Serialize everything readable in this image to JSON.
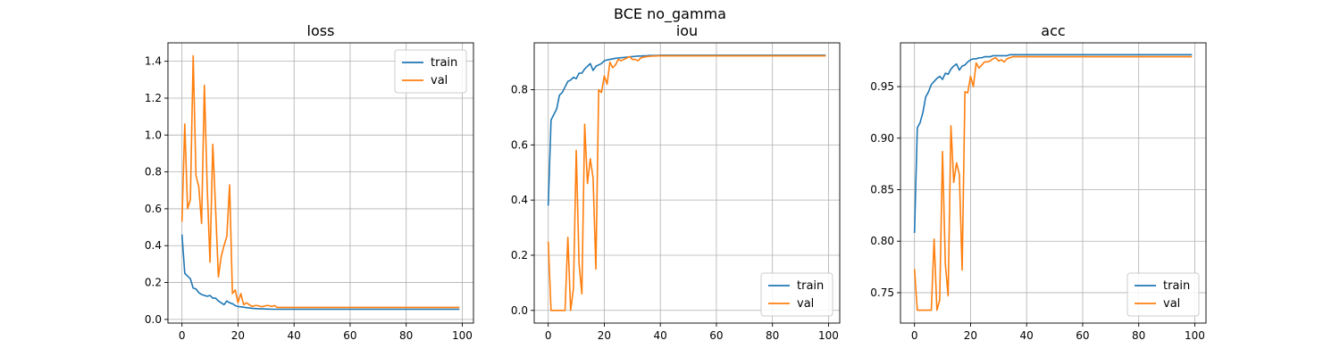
{
  "figure": {
    "suptitle": "BCE no_gamma"
  },
  "chart_data": [
    {
      "type": "line",
      "title": "loss",
      "xlabel": "",
      "ylabel": "",
      "xlim": [
        -5,
        104
      ],
      "ylim": [
        -0.02,
        1.5
      ],
      "xticks": [
        0,
        20,
        40,
        60,
        80,
        100
      ],
      "yticks": [
        0.0,
        0.2,
        0.4,
        0.6,
        0.8,
        1.0,
        1.2,
        1.4
      ],
      "ytick_labels": [
        "0.0",
        "0.2",
        "0.4",
        "0.6",
        "0.8",
        "1.0",
        "1.2",
        "1.4"
      ],
      "grid": true,
      "legend": "upper right",
      "series": [
        {
          "name": "train",
          "color": "#1f77b4",
          "values": [
            0.46,
            0.25,
            0.235,
            0.22,
            0.17,
            0.165,
            0.145,
            0.135,
            0.13,
            0.125,
            0.13,
            0.115,
            0.115,
            0.1,
            0.09,
            0.08,
            0.1,
            0.09,
            0.085,
            0.075,
            0.07,
            0.068,
            0.066,
            0.064,
            0.062,
            0.06,
            0.059,
            0.058,
            0.057,
            0.057,
            0.056,
            0.056,
            0.055,
            0.055,
            0.055,
            0.055,
            0.055,
            0.055,
            0.055,
            0.055,
            0.055,
            0.055,
            0.055,
            0.055,
            0.055,
            0.055,
            0.055,
            0.055,
            0.055,
            0.055,
            0.055,
            0.055,
            0.055,
            0.055,
            0.055,
            0.055,
            0.055,
            0.055,
            0.055,
            0.055,
            0.055,
            0.055,
            0.055,
            0.055,
            0.055,
            0.055,
            0.055,
            0.055,
            0.055,
            0.055,
            0.055,
            0.055,
            0.055,
            0.055,
            0.055,
            0.055,
            0.055,
            0.055,
            0.055,
            0.055,
            0.055,
            0.055,
            0.055,
            0.055,
            0.055,
            0.055,
            0.055,
            0.055,
            0.055,
            0.055,
            0.055,
            0.055,
            0.055,
            0.055,
            0.055,
            0.055,
            0.055,
            0.055,
            0.055,
            0.055
          ]
        },
        {
          "name": "val",
          "color": "#ff7f0e",
          "values": [
            0.53,
            1.06,
            0.6,
            0.65,
            1.43,
            0.78,
            0.72,
            0.52,
            1.27,
            0.72,
            0.31,
            0.95,
            0.6,
            0.23,
            0.34,
            0.4,
            0.45,
            0.73,
            0.14,
            0.16,
            0.09,
            0.14,
            0.08,
            0.09,
            0.08,
            0.07,
            0.075,
            0.075,
            0.07,
            0.07,
            0.075,
            0.075,
            0.07,
            0.075,
            0.065,
            0.065,
            0.065,
            0.065,
            0.065,
            0.065,
            0.065,
            0.065,
            0.065,
            0.065,
            0.065,
            0.065,
            0.065,
            0.065,
            0.065,
            0.065,
            0.065,
            0.065,
            0.065,
            0.065,
            0.065,
            0.065,
            0.065,
            0.065,
            0.065,
            0.065,
            0.065,
            0.065,
            0.065,
            0.065,
            0.065,
            0.065,
            0.065,
            0.065,
            0.065,
            0.065,
            0.065,
            0.065,
            0.065,
            0.065,
            0.065,
            0.065,
            0.065,
            0.065,
            0.065,
            0.065,
            0.065,
            0.065,
            0.065,
            0.065,
            0.065,
            0.065,
            0.065,
            0.065,
            0.065,
            0.065,
            0.065,
            0.065,
            0.065,
            0.065,
            0.065,
            0.065,
            0.065,
            0.065,
            0.065,
            0.065
          ]
        }
      ]
    },
    {
      "type": "line",
      "title": "iou",
      "xlabel": "",
      "ylabel": "",
      "xlim": [
        -5,
        104
      ],
      "ylim": [
        -0.046,
        0.97
      ],
      "xticks": [
        0,
        20,
        40,
        60,
        80,
        100
      ],
      "yticks": [
        0.0,
        0.2,
        0.4,
        0.6,
        0.8
      ],
      "ytick_labels": [
        "0.0",
        "0.2",
        "0.4",
        "0.6",
        "0.8"
      ],
      "grid": true,
      "legend": "lower right",
      "series": [
        {
          "name": "train",
          "color": "#1f77b4",
          "values": [
            0.38,
            0.69,
            0.71,
            0.73,
            0.78,
            0.79,
            0.81,
            0.83,
            0.835,
            0.845,
            0.84,
            0.86,
            0.86,
            0.875,
            0.885,
            0.895,
            0.87,
            0.885,
            0.89,
            0.895,
            0.905,
            0.908,
            0.91,
            0.912,
            0.914,
            0.915,
            0.916,
            0.917,
            0.918,
            0.919,
            0.92,
            0.921,
            0.922,
            0.922,
            0.923,
            0.923,
            0.924,
            0.924,
            0.924,
            0.924,
            0.925,
            0.925,
            0.925,
            0.925,
            0.925,
            0.925,
            0.925,
            0.925,
            0.925,
            0.925,
            0.925,
            0.925,
            0.925,
            0.925,
            0.925,
            0.925,
            0.925,
            0.925,
            0.925,
            0.925,
            0.925,
            0.925,
            0.925,
            0.925,
            0.925,
            0.925,
            0.925,
            0.925,
            0.925,
            0.925,
            0.925,
            0.925,
            0.925,
            0.925,
            0.925,
            0.925,
            0.925,
            0.925,
            0.925,
            0.925,
            0.925,
            0.925,
            0.925,
            0.925,
            0.925,
            0.925,
            0.925,
            0.925,
            0.925,
            0.925,
            0.925,
            0.925,
            0.925,
            0.925,
            0.925,
            0.925,
            0.925,
            0.925,
            0.925,
            0.925
          ]
        },
        {
          "name": "val",
          "color": "#ff7f0e",
          "values": [
            0.25,
            0.0,
            0.0,
            0.0,
            0.0,
            0.0,
            0.0,
            0.265,
            0.0,
            0.08,
            0.58,
            0.17,
            0.06,
            0.675,
            0.46,
            0.55,
            0.48,
            0.15,
            0.8,
            0.79,
            0.85,
            0.82,
            0.9,
            0.88,
            0.89,
            0.91,
            0.905,
            0.91,
            0.915,
            0.92,
            0.91,
            0.91,
            0.905,
            0.915,
            0.918,
            0.92,
            0.921,
            0.922,
            0.922,
            0.923,
            0.923,
            0.923,
            0.923,
            0.923,
            0.923,
            0.923,
            0.923,
            0.923,
            0.923,
            0.923,
            0.923,
            0.923,
            0.923,
            0.923,
            0.923,
            0.923,
            0.923,
            0.923,
            0.923,
            0.923,
            0.923,
            0.923,
            0.923,
            0.923,
            0.923,
            0.923,
            0.923,
            0.923,
            0.923,
            0.923,
            0.923,
            0.923,
            0.923,
            0.923,
            0.923,
            0.923,
            0.923,
            0.923,
            0.923,
            0.923,
            0.923,
            0.923,
            0.923,
            0.923,
            0.923,
            0.923,
            0.923,
            0.923,
            0.923,
            0.923,
            0.923,
            0.923,
            0.923,
            0.923,
            0.923,
            0.923,
            0.923,
            0.923,
            0.923,
            0.923
          ]
        }
      ]
    },
    {
      "type": "line",
      "title": "acc",
      "xlabel": "",
      "ylabel": "",
      "xlim": [
        -5,
        104
      ],
      "ylim": [
        0.7205,
        0.9925
      ],
      "xticks": [
        0,
        20,
        40,
        60,
        80,
        100
      ],
      "yticks": [
        0.75,
        0.8,
        0.85,
        0.9,
        0.95
      ],
      "ytick_labels": [
        "0.75",
        "0.80",
        "0.85",
        "0.90",
        "0.95"
      ],
      "grid": true,
      "legend": "lower right",
      "series": [
        {
          "name": "train",
          "color": "#1f77b4",
          "values": [
            0.808,
            0.91,
            0.915,
            0.925,
            0.94,
            0.945,
            0.952,
            0.955,
            0.958,
            0.96,
            0.957,
            0.963,
            0.962,
            0.967,
            0.97,
            0.972,
            0.966,
            0.97,
            0.971,
            0.974,
            0.976,
            0.977,
            0.977,
            0.978,
            0.978,
            0.979,
            0.979,
            0.979,
            0.98,
            0.98,
            0.98,
            0.98,
            0.98,
            0.98,
            0.981,
            0.981,
            0.981,
            0.981,
            0.981,
            0.981,
            0.981,
            0.981,
            0.981,
            0.981,
            0.981,
            0.981,
            0.981,
            0.981,
            0.981,
            0.981,
            0.981,
            0.981,
            0.981,
            0.981,
            0.981,
            0.981,
            0.981,
            0.981,
            0.981,
            0.981,
            0.981,
            0.981,
            0.981,
            0.981,
            0.981,
            0.981,
            0.981,
            0.981,
            0.981,
            0.981,
            0.981,
            0.981,
            0.981,
            0.981,
            0.981,
            0.981,
            0.981,
            0.981,
            0.981,
            0.981,
            0.981,
            0.981,
            0.981,
            0.981,
            0.981,
            0.981,
            0.981,
            0.981,
            0.981,
            0.981,
            0.981,
            0.981,
            0.981,
            0.981,
            0.981,
            0.981,
            0.981,
            0.981,
            0.981,
            0.981
          ]
        },
        {
          "name": "val",
          "color": "#ff7f0e",
          "values": [
            0.773,
            0.733,
            0.733,
            0.733,
            0.733,
            0.733,
            0.733,
            0.802,
            0.733,
            0.743,
            0.887,
            0.778,
            0.747,
            0.912,
            0.857,
            0.876,
            0.865,
            0.772,
            0.945,
            0.944,
            0.96,
            0.95,
            0.973,
            0.968,
            0.971,
            0.974,
            0.974,
            0.975,
            0.977,
            0.978,
            0.975,
            0.976,
            0.974,
            0.977,
            0.978,
            0.979,
            0.979,
            0.979,
            0.979,
            0.979,
            0.979,
            0.979,
            0.979,
            0.979,
            0.979,
            0.979,
            0.979,
            0.979,
            0.979,
            0.979,
            0.979,
            0.979,
            0.979,
            0.979,
            0.979,
            0.979,
            0.979,
            0.979,
            0.979,
            0.979,
            0.979,
            0.979,
            0.979,
            0.979,
            0.979,
            0.979,
            0.979,
            0.979,
            0.979,
            0.979,
            0.979,
            0.979,
            0.979,
            0.979,
            0.979,
            0.979,
            0.979,
            0.979,
            0.979,
            0.979,
            0.979,
            0.979,
            0.979,
            0.979,
            0.979,
            0.979,
            0.979,
            0.979,
            0.979,
            0.979,
            0.979,
            0.979,
            0.979,
            0.979,
            0.979,
            0.979,
            0.979,
            0.979,
            0.979,
            0.979
          ]
        }
      ]
    }
  ]
}
